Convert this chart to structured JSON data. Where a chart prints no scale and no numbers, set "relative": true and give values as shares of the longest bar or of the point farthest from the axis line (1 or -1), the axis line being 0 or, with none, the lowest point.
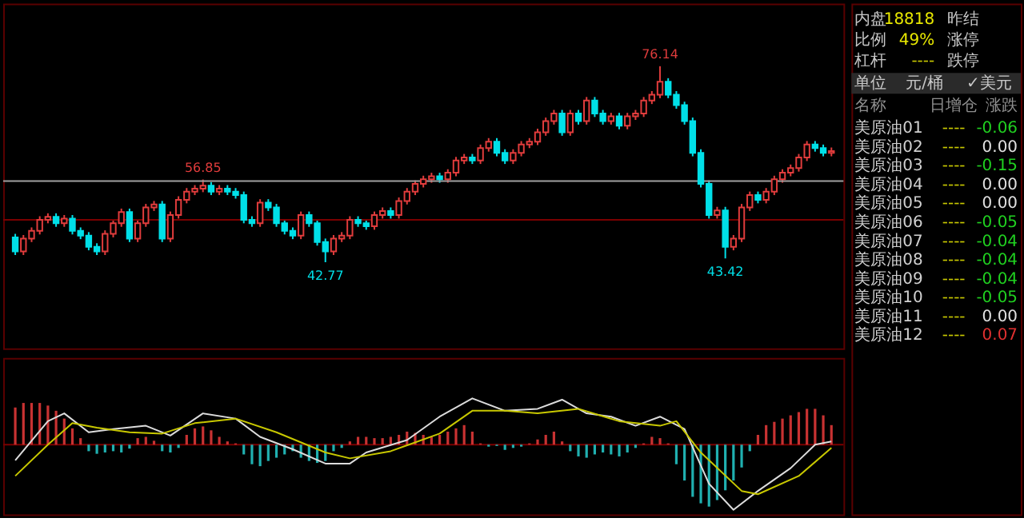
{
  "chart_data": [
    {
      "type": "candlestick",
      "tick_labels": false,
      "ylim": [
        28.1,
        86.8
      ],
      "colors": [
        "#00e0e8",
        "#e03c3c",
        "#e03c3c",
        "#e03c3c",
        "#e03c3c",
        "#00e0e8",
        "#e03c3c",
        "#00e0e8",
        "#00e0e8",
        "#00e0e8",
        "#00e0e8",
        "#e03c3c",
        "#e03c3c",
        "#e03c3c",
        "#00e0e8",
        "#e03c3c",
        "#e03c3c",
        "#e03c3c",
        "#00e0e8",
        "#e03c3c",
        "#e03c3c",
        "#e03c3c",
        "#e03c3c",
        "#e03c3c",
        "#00e0e8",
        "#e03c3c",
        "#00e0e8",
        "#00e0e8",
        "#00e0e8",
        "#00e0e8",
        "#e03c3c",
        "#00e0e8",
        "#00e0e8",
        "#00e0e8",
        "#00e0e8",
        "#e03c3c",
        "#00e0e8",
        "#00e0e8",
        "#00e0e8",
        "#e03c3c",
        "#e03c3c",
        "#e03c3c",
        "#00e0e8",
        "#00e0e8",
        "#e03c3c",
        "#e03c3c",
        "#00e0e8",
        "#e03c3c",
        "#e03c3c",
        "#e03c3c",
        "#e03c3c",
        "#e03c3c",
        "#00e0e8",
        "#e03c3c",
        "#e03c3c",
        "#e03c3c",
        "#00e0e8",
        "#e03c3c",
        "#e03c3c",
        "#00e0e8",
        "#00e0e8",
        "#e03c3c",
        "#e03c3c",
        "#e03c3c",
        "#e03c3c",
        "#e03c3c",
        "#e03c3c",
        "#00e0e8",
        "#e03c3c",
        "#00e0e8",
        "#e03c3c",
        "#00e0e8",
        "#00e0e8",
        "#e03c3c",
        "#00e0e8",
        "#e03c3c",
        "#e03c3c",
        "#e03c3c",
        "#e03c3c",
        "#e03c3c",
        "#00e0e8",
        "#00e0e8",
        "#00e0e8",
        "#00e0e8",
        "#00e0e8",
        "#00e0e8",
        "#e03c3c",
        "#00e0e8",
        "#e03c3c",
        "#e03c3c",
        "#e03c3c",
        "#00e0e8",
        "#e03c3c",
        "#e03c3c",
        "#e03c3c",
        "#e03c3c",
        "#e03c3c",
        "#e03c3c",
        "#00e0e8",
        "#00e0e8",
        "#e03c3c"
      ],
      "categories": [
        null,
        null,
        null,
        null,
        null,
        null,
        null,
        null,
        null,
        null,
        null,
        null,
        null,
        null,
        null,
        null,
        null,
        null,
        null,
        null,
        null,
        null,
        null,
        null,
        null,
        null,
        null,
        null,
        null,
        null,
        null,
        null,
        null,
        null,
        null,
        null,
        null,
        null,
        null,
        null,
        null,
        null,
        null,
        null,
        null,
        null,
        null,
        null,
        null,
        null,
        null,
        null,
        null,
        null,
        null,
        null,
        null,
        null,
        null,
        null,
        null,
        null,
        null,
        null,
        null,
        null,
        null,
        null,
        null,
        null,
        null,
        null,
        null,
        null,
        null,
        null,
        null,
        null,
        null,
        null,
        null,
        null,
        null,
        null,
        null,
        null,
        null,
        null,
        null,
        null,
        null,
        null,
        null,
        null,
        null,
        null,
        null,
        null,
        null,
        null,
        null
      ],
      "ohlc": [
        [
          47.0,
          47.6,
          44.0,
          44.6
        ],
        [
          44.6,
          47.4,
          44.0,
          46.8
        ],
        [
          46.8,
          48.7,
          46.2,
          48.1
        ],
        [
          48.1,
          50.6,
          47.5,
          50.0
        ],
        [
          50.0,
          51.1,
          49.4,
          50.5
        ],
        [
          50.5,
          51.1,
          48.8,
          49.4
        ],
        [
          49.4,
          50.8,
          48.8,
          50.2
        ],
        [
          50.2,
          50.8,
          47.5,
          48.1
        ],
        [
          48.1,
          48.7,
          46.7,
          47.3
        ],
        [
          47.3,
          47.9,
          44.8,
          45.4
        ],
        [
          45.4,
          46.0,
          44.0,
          44.6
        ],
        [
          44.6,
          48.2,
          44.0,
          47.6
        ],
        [
          47.6,
          50.0,
          47.0,
          49.4
        ],
        [
          49.4,
          51.9,
          48.8,
          51.3
        ],
        [
          51.3,
          51.9,
          46.2,
          46.8
        ],
        [
          46.8,
          50.0,
          46.2,
          49.4
        ],
        [
          49.4,
          52.7,
          48.8,
          52.1
        ],
        [
          52.1,
          53.2,
          51.5,
          52.6
        ],
        [
          52.6,
          53.2,
          46.2,
          46.8
        ],
        [
          46.8,
          51.4,
          46.2,
          50.8
        ],
        [
          50.8,
          54.0,
          50.2,
          53.4
        ],
        [
          53.4,
          55.4,
          52.8,
          54.8
        ],
        [
          54.8,
          55.9,
          54.2,
          55.3
        ],
        [
          55.3,
          56.85,
          54.7,
          55.8
        ],
        [
          55.8,
          56.4,
          54.2,
          54.8
        ],
        [
          54.8,
          55.9,
          54.2,
          55.3
        ],
        [
          55.3,
          55.9,
          54.2,
          54.8
        ],
        [
          54.8,
          55.4,
          53.6,
          54.2
        ],
        [
          54.2,
          54.8,
          49.4,
          50.0
        ],
        [
          50.0,
          50.6,
          48.8,
          49.4
        ],
        [
          49.4,
          53.5,
          48.8,
          52.9
        ],
        [
          52.9,
          53.5,
          51.5,
          52.1
        ],
        [
          52.1,
          52.7,
          48.8,
          49.4
        ],
        [
          49.4,
          50.0,
          47.5,
          48.1
        ],
        [
          48.1,
          48.7,
          46.7,
          47.3
        ],
        [
          47.3,
          51.4,
          46.7,
          50.8
        ],
        [
          50.8,
          51.4,
          48.8,
          49.4
        ],
        [
          49.4,
          50.0,
          45.6,
          46.2
        ],
        [
          46.2,
          46.8,
          42.77,
          44.6
        ],
        [
          44.6,
          47.4,
          44.0,
          46.8
        ],
        [
          46.8,
          47.9,
          46.2,
          47.3
        ],
        [
          47.3,
          50.6,
          46.7,
          50.0
        ],
        [
          50.0,
          50.6,
          48.8,
          49.4
        ],
        [
          49.4,
          50.0,
          48.3,
          48.9
        ],
        [
          48.9,
          51.4,
          48.3,
          50.8
        ],
        [
          50.8,
          52.1,
          50.2,
          51.5
        ],
        [
          51.5,
          52.1,
          50.2,
          50.8
        ],
        [
          50.8,
          53.8,
          50.2,
          53.2
        ],
        [
          53.2,
          55.4,
          52.6,
          54.8
        ],
        [
          54.8,
          56.7,
          54.2,
          56.1
        ],
        [
          56.1,
          57.5,
          55.5,
          56.9
        ],
        [
          56.9,
          58.0,
          56.3,
          57.4
        ],
        [
          57.4,
          58.0,
          56.3,
          56.9
        ],
        [
          56.9,
          58.6,
          56.3,
          58.0
        ],
        [
          58.0,
          60.7,
          57.4,
          60.1
        ],
        [
          60.1,
          61.2,
          59.5,
          60.6
        ],
        [
          60.6,
          61.2,
          59.5,
          60.1
        ],
        [
          60.1,
          62.8,
          59.5,
          62.2
        ],
        [
          62.2,
          63.9,
          61.6,
          63.3
        ],
        [
          63.3,
          63.9,
          60.8,
          61.4
        ],
        [
          61.4,
          62.0,
          59.5,
          60.1
        ],
        [
          60.1,
          62.0,
          59.5,
          61.4
        ],
        [
          61.4,
          63.4,
          60.8,
          62.8
        ],
        [
          62.8,
          63.9,
          62.2,
          63.3
        ],
        [
          63.3,
          65.5,
          62.7,
          64.9
        ],
        [
          64.9,
          67.4,
          64.3,
          66.8
        ],
        [
          66.8,
          68.7,
          66.2,
          68.1
        ],
        [
          68.1,
          68.7,
          64.3,
          64.9
        ],
        [
          64.9,
          68.7,
          64.3,
          68.1
        ],
        [
          68.1,
          68.7,
          66.2,
          66.8
        ],
        [
          66.8,
          70.9,
          66.2,
          70.3
        ],
        [
          70.3,
          70.9,
          67.5,
          68.1
        ],
        [
          68.1,
          68.7,
          66.2,
          66.8
        ],
        [
          66.8,
          68.2,
          66.2,
          67.6
        ],
        [
          67.6,
          68.2,
          65.4,
          66.0
        ],
        [
          66.0,
          68.2,
          65.4,
          67.6
        ],
        [
          67.6,
          68.7,
          67.0,
          68.1
        ],
        [
          68.1,
          70.9,
          67.5,
          70.3
        ],
        [
          70.3,
          71.9,
          69.7,
          71.3
        ],
        [
          71.3,
          76.14,
          70.7,
          73.5
        ],
        [
          73.5,
          74.1,
          70.7,
          71.3
        ],
        [
          71.3,
          71.9,
          68.9,
          69.5
        ],
        [
          69.5,
          70.1,
          66.2,
          66.8
        ],
        [
          66.8,
          67.4,
          60.8,
          61.4
        ],
        [
          61.4,
          62.0,
          55.5,
          56.1
        ],
        [
          56.1,
          56.7,
          50.2,
          50.8
        ],
        [
          50.8,
          52.2,
          50.2,
          51.6
        ],
        [
          51.6,
          52.2,
          43.42,
          45.4
        ],
        [
          45.4,
          47.4,
          44.8,
          46.8
        ],
        [
          46.8,
          52.7,
          46.2,
          52.1
        ],
        [
          52.1,
          54.8,
          51.5,
          54.2
        ],
        [
          54.2,
          54.8,
          52.8,
          53.4
        ],
        [
          53.4,
          55.4,
          52.8,
          54.8
        ],
        [
          54.8,
          57.5,
          54.2,
          56.9
        ],
        [
          56.9,
          58.6,
          56.3,
          58.0
        ],
        [
          58.0,
          59.4,
          57.4,
          58.8
        ],
        [
          58.8,
          61.2,
          58.2,
          60.6
        ],
        [
          60.6,
          63.4,
          60.0,
          62.8
        ],
        [
          62.8,
          63.4,
          61.6,
          62.2
        ],
        [
          62.2,
          62.8,
          60.8,
          61.4
        ],
        [
          61.4,
          62.3,
          60.8,
          61.7
        ]
      ],
      "annotations": [
        {
          "text": "56.85",
          "y": 56.85
        },
        {
          "text": "42.77",
          "y": 42.77
        },
        {
          "text": "76.14",
          "y": 76.14
        },
        {
          "text": "43.42",
          "y": 43.42
        }
      ],
      "ref_lines": [
        {
          "axis": "y",
          "value": 56.6,
          "color": "#a0a0a0"
        },
        {
          "axis": "y",
          "value": 50.0,
          "color": "#7a0000"
        }
      ]
    },
    {
      "type": "bar",
      "relative": true,
      "tick_labels": false,
      "categories": [
        null,
        null,
        null,
        null,
        null,
        null,
        null,
        null,
        null,
        null,
        null,
        null,
        null,
        null,
        null,
        null,
        null,
        null,
        null,
        null,
        null,
        null,
        null,
        null,
        null,
        null,
        null,
        null,
        null,
        null,
        null,
        null,
        null,
        null,
        null,
        null,
        null,
        null,
        null,
        null,
        null,
        null,
        null,
        null,
        null,
        null,
        null,
        null,
        null,
        null,
        null,
        null,
        null,
        null,
        null,
        null,
        null,
        null,
        null,
        null,
        null,
        null,
        null,
        null,
        null,
        null,
        null,
        null,
        null,
        null,
        null,
        null,
        null,
        null,
        null,
        null,
        null,
        null,
        null,
        null,
        null,
        null,
        null,
        null,
        null,
        null,
        null,
        null,
        null,
        null,
        null,
        null,
        null,
        null,
        null,
        null,
        null,
        null,
        null,
        null,
        null
      ],
      "series": [
        {
          "type": "bar",
          "colors": [
            "#c83232",
            "#c83232",
            "#c83232",
            "#c83232",
            "#c83232",
            "#c83232",
            "#c83232",
            "#c83232",
            "#c83232",
            "#20b0b0",
            "#20b0b0",
            "#20b0b0",
            "#20b0b0",
            "#20b0b0",
            "#20b0b0",
            "#c83232",
            "#c83232",
            "#c83232",
            "#20b0b0",
            "#20b0b0",
            "#20b0b0",
            "#c83232",
            "#c83232",
            "#c83232",
            "#c83232",
            "#c83232",
            "#c83232",
            "#c83232",
            "#20b0b0",
            "#20b0b0",
            "#20b0b0",
            "#20b0b0",
            "#20b0b0",
            "#20b0b0",
            "#20b0b0",
            "#20b0b0",
            "#20b0b0",
            "#20b0b0",
            "#20b0b0",
            "#20b0b0",
            "#20b0b0",
            "#c83232",
            "#c83232",
            "#c83232",
            "#c83232",
            "#c83232",
            "#c83232",
            "#c83232",
            "#c83232",
            "#c83232",
            "#c83232",
            "#c83232",
            "#c83232",
            "#c83232",
            "#c83232",
            "#c83232",
            "#c83232",
            "#c83232",
            "#20b0b0",
            "#20b0b0",
            "#20b0b0",
            "#20b0b0",
            "#20b0b0",
            "#c83232",
            "#c83232",
            "#c83232",
            "#c83232",
            "#c83232",
            "#20b0b0",
            "#20b0b0",
            "#20b0b0",
            "#20b0b0",
            "#20b0b0",
            "#20b0b0",
            "#20b0b0",
            "#20b0b0",
            "#20b0b0",
            "#c83232",
            "#c83232",
            "#c83232",
            "#c83232",
            "#20b0b0",
            "#20b0b0",
            "#20b0b0",
            "#20b0b0",
            "#20b0b0",
            "#20b0b0",
            "#20b0b0",
            "#20b0b0",
            "#20b0b0",
            "#20b0b0",
            "#c83232",
            "#c83232",
            "#c83232",
            "#c83232",
            "#c83232",
            "#c83232",
            "#c83232",
            "#c83232",
            "#c83232",
            "#c83232"
          ],
          "values": [
            0.57,
            0.64,
            0.64,
            0.64,
            0.6,
            0.52,
            0.4,
            0.25,
            0.1,
            -0.1,
            -0.14,
            -0.12,
            -0.1,
            -0.12,
            -0.06,
            0.1,
            0.12,
            0.06,
            -0.1,
            -0.12,
            -0.05,
            0.15,
            0.25,
            0.28,
            0.22,
            0.12,
            0.05,
            0.02,
            -0.15,
            -0.3,
            -0.33,
            -0.25,
            -0.2,
            -0.15,
            -0.1,
            -0.2,
            -0.25,
            -0.28,
            -0.25,
            -0.1,
            -0.05,
            0.05,
            0.12,
            0.12,
            0.1,
            0.1,
            0.12,
            0.15,
            0.2,
            0.18,
            0.15,
            0.12,
            0.15,
            0.2,
            0.25,
            0.3,
            0.2,
            0.02,
            -0.03,
            -0.02,
            -0.08,
            -0.05,
            -0.03,
            0.02,
            0.08,
            0.15,
            0.2,
            0.05,
            -0.1,
            -0.18,
            -0.2,
            -0.15,
            -0.12,
            -0.15,
            -0.18,
            -0.12,
            -0.05,
            0.02,
            0.12,
            0.1,
            0.02,
            -0.3,
            -0.55,
            -0.8,
            -0.9,
            -0.95,
            -0.85,
            -0.7,
            -0.55,
            -0.35,
            -0.1,
            0.15,
            0.3,
            0.35,
            0.4,
            0.45,
            0.5,
            0.55,
            0.55,
            0.45,
            0.3
          ]
        },
        {
          "type": "line",
          "color": "#dcdcdc",
          "values": [
            -0.24,
            null,
            null,
            null,
            0.36,
            null,
            0.48,
            null,
            null,
            0.19,
            null,
            null,
            0.24,
            null,
            null,
            null,
            0.29,
            null,
            null,
            0.14,
            null,
            null,
            null,
            0.48,
            null,
            null,
            null,
            0.4,
            null,
            null,
            0.12,
            null,
            null,
            null,
            -0.07,
            null,
            null,
            null,
            -0.29,
            null,
            null,
            -0.29,
            null,
            -0.12,
            null,
            null,
            null,
            null,
            0.07,
            null,
            null,
            null,
            0.43,
            null,
            null,
            null,
            0.71,
            null,
            null,
            null,
            0.52,
            null,
            null,
            null,
            0.55,
            null,
            null,
            0.69,
            null,
            null,
            0.48,
            null,
            null,
            0.43,
            null,
            null,
            0.29,
            null,
            null,
            0.43,
            null,
            null,
            0.24,
            null,
            null,
            -0.6,
            null,
            null,
            -1.0,
            null,
            null,
            -0.71,
            null,
            null,
            null,
            -0.36,
            null,
            null,
            0.0,
            null,
            0.05
          ]
        },
        {
          "type": "line",
          "color": "#c8c800",
          "values": [
            -0.48,
            null,
            null,
            null,
            0.0,
            null,
            null,
            0.33,
            null,
            null,
            0.26,
            null,
            null,
            null,
            0.19,
            null,
            null,
            null,
            0.17,
            null,
            null,
            null,
            0.33,
            null,
            null,
            null,
            null,
            0.4,
            null,
            null,
            null,
            null,
            0.19,
            null,
            null,
            null,
            null,
            null,
            -0.12,
            null,
            null,
            -0.21,
            null,
            null,
            null,
            null,
            -0.1,
            null,
            null,
            null,
            null,
            null,
            0.17,
            null,
            null,
            null,
            0.52,
            null,
            null,
            null,
            0.52,
            null,
            null,
            null,
            0.48,
            null,
            null,
            null,
            null,
            0.55,
            null,
            null,
            null,
            null,
            0.36,
            null,
            null,
            null,
            null,
            0.29,
            null,
            0.36,
            null,
            null,
            -0.12,
            null,
            null,
            null,
            null,
            -0.71,
            null,
            -0.76,
            null,
            null,
            null,
            null,
            -0.48,
            null,
            null,
            null,
            -0.05
          ]
        }
      ],
      "ref_lines": [
        {
          "axis": "y",
          "value": 0,
          "color": "#7a0000"
        }
      ]
    },
    {
      "type": "other",
      "annotations": [
        "内盘",
        "18818",
        "比例",
        "49%",
        "杠杆",
        "----",
        "昨结",
        "涨停",
        "跌停",
        "单位",
        "元/桶",
        "✓美元",
        "名称",
        "日增仓",
        "----",
        "----",
        "----",
        "----",
        "----",
        "----",
        "----",
        "----",
        "----",
        "----",
        "----",
        "----"
      ],
      "categories": [
        "美原油01",
        "美原油02",
        "美原油03",
        "美原油04",
        "美原油05",
        "美原油06",
        "美原油07",
        "美原油08",
        "美原油09",
        "美原油10",
        "美原油11",
        "美原油12"
      ],
      "legend_title": "涨跌",
      "values": [
        -0.06,
        0.0,
        -0.15,
        0.0,
        0.0,
        -0.05,
        -0.04,
        -0.04,
        -0.04,
        -0.05,
        0.0,
        0.07
      ],
      "value_labels": [
        "-0.06",
        "0.00",
        "-0.15",
        "0.00",
        "0.00",
        "-0.05",
        "-0.04",
        "-0.04",
        "-0.04",
        "-0.05",
        "0.00",
        "0.07"
      ]
    }
  ]
}
